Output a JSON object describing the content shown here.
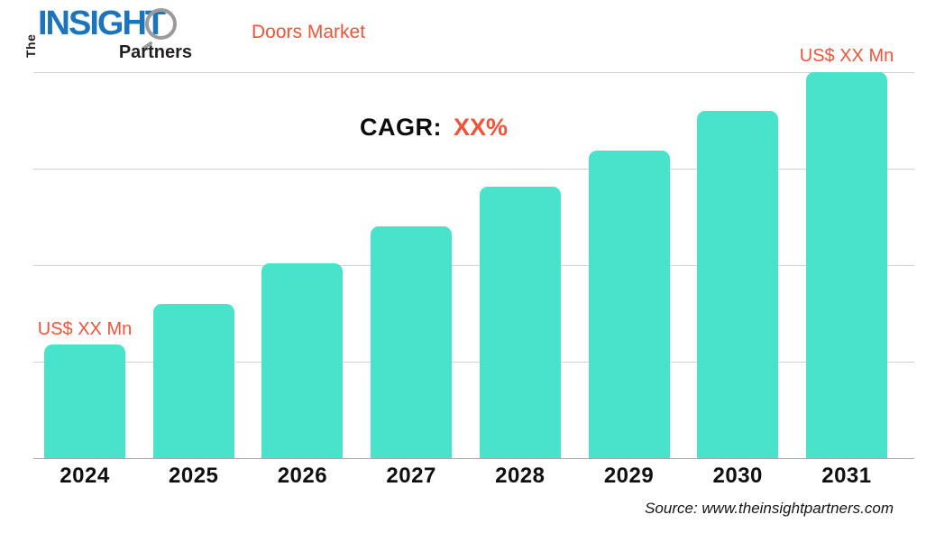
{
  "logo": {
    "the": "The",
    "insight": "INSIGHT",
    "partners": "Partners"
  },
  "header": {
    "title": "Doors Market"
  },
  "annotations": {
    "cagr_label": "CAGR:",
    "cagr_value": "XX%",
    "first_bar_label": "US$ XX Mn",
    "last_bar_label": "US$ XX Mn"
  },
  "source": "Source: www.theinsightpartners.com",
  "colors": {
    "bar": "#48e3ca",
    "accent_orange": "#f0543a",
    "logo_blue": "#1c75bc",
    "gridline": "#d2d2d2",
    "baseline": "#a8a8a8"
  },
  "chart_data": {
    "type": "bar",
    "title": "Doors Market",
    "categories": [
      "2024",
      "2025",
      "2026",
      "2027",
      "2028",
      "2029",
      "2030",
      "2031"
    ],
    "values_pct_of_max": [
      29.4,
      40.0,
      50.5,
      60.0,
      70.3,
      79.7,
      90.0,
      100.0
    ],
    "value_labels_shown": {
      "2024": "US$ XX Mn",
      "2031": "US$ XX Mn"
    },
    "cagr": "XX%",
    "unit": "US$ Mn",
    "xlabel": "",
    "ylabel": "",
    "y_tick_labels": [],
    "gridlines": "4 horizontal light-gray lines plus darker baseline, no y-axis tick values shown",
    "legend": "none",
    "bar_color": "#48e3ca"
  }
}
